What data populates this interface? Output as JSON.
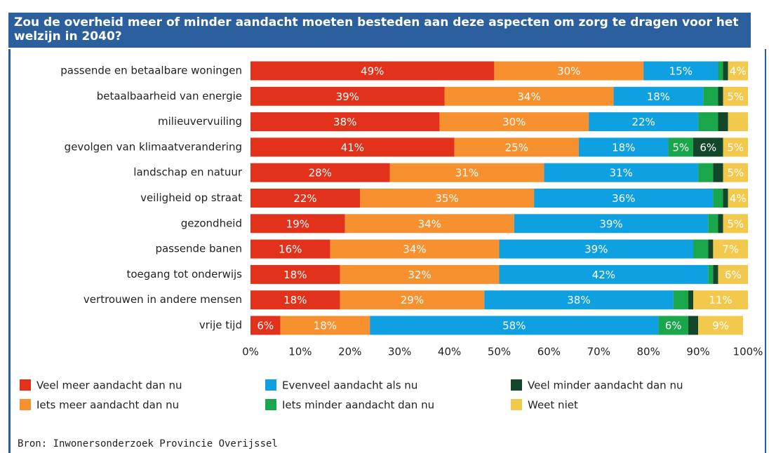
{
  "chart_data": {
    "type": "stacked-bar",
    "title": "Zou de overheid meer of minder aandacht moeten besteden aan deze aspecten om zorg te dragen voor het welzijn in 2040?",
    "source": "Bron: Inwonersonderzoek Provincie Overijssel",
    "categories": [
      "passende en betaalbare woningen",
      "betaalbaarheid van energie",
      "milieuvervuiling",
      "gevolgen van klimaatverandering",
      "landschap en natuur",
      "veiligheid op straat",
      "gezondheid",
      "passende banen",
      "toegang tot onderwijs",
      "vertrouwen in andere mensen",
      "vrije tijd"
    ],
    "series": [
      {
        "name": "Veel meer aandacht dan nu",
        "color": "#e3321b",
        "values": [
          49,
          39,
          38,
          41,
          28,
          22,
          19,
          16,
          18,
          18,
          6
        ],
        "value_labels": [
          "49%",
          "39%",
          "38%",
          "41%",
          "28%",
          "22%",
          "19%",
          "16%",
          "18%",
          "18%",
          "6%"
        ]
      },
      {
        "name": "Iets meer aandacht dan nu",
        "color": "#f7902f",
        "values": [
          30,
          34,
          30,
          25,
          31,
          35,
          34,
          34,
          32,
          29,
          18
        ],
        "value_labels": [
          "30%",
          "34%",
          "30%",
          "25%",
          "31%",
          "35%",
          "34%",
          "34%",
          "32%",
          "29%",
          "18%"
        ]
      },
      {
        "name": "Evenveel aandacht als nu",
        "color": "#0fa0e2",
        "values": [
          15,
          18,
          22,
          18,
          31,
          36,
          39,
          39,
          42,
          38,
          58
        ],
        "value_labels": [
          "15%",
          "18%",
          "22%",
          "18%",
          "31%",
          "36%",
          "39%",
          "39%",
          "42%",
          "38%",
          "58%"
        ]
      },
      {
        "name": "Iets minder aandacht dan nu",
        "color": "#1aa64a",
        "values": [
          1,
          3,
          4,
          5,
          3,
          2,
          2,
          3,
          1,
          3,
          6
        ],
        "value_labels": [
          null,
          null,
          null,
          "5%",
          null,
          null,
          null,
          null,
          null,
          null,
          "6%"
        ]
      },
      {
        "name": "Veel minder aandacht dan nu",
        "color": "#14472a",
        "values": [
          1,
          1,
          2,
          6,
          2,
          1,
          1,
          1,
          1,
          1,
          2
        ],
        "value_labels": [
          null,
          null,
          null,
          "6%",
          null,
          null,
          null,
          null,
          null,
          null,
          null
        ]
      },
      {
        "name": "Weet niet",
        "color": "#f2c94c",
        "values": [
          4,
          5,
          4,
          5,
          5,
          4,
          5,
          7,
          6,
          11,
          9
        ],
        "value_labels": [
          "4%",
          "5%",
          null,
          "5%",
          "5%",
          "4%",
          "5%",
          "7%",
          "6%",
          "11%",
          "9%"
        ]
      }
    ],
    "xlim": [
      0,
      100
    ],
    "xticks": [
      {
        "value": 0,
        "label": "0%"
      },
      {
        "value": 10,
        "label": "10%"
      },
      {
        "value": 20,
        "label": "20%"
      },
      {
        "value": 30,
        "label": "30%"
      },
      {
        "value": 40,
        "label": "40%"
      },
      {
        "value": 50,
        "label": "50%"
      },
      {
        "value": 60,
        "label": "60%"
      },
      {
        "value": 70,
        "label": "70%"
      },
      {
        "value": 80,
        "label": "80%"
      },
      {
        "value": 90,
        "label": "90%"
      },
      {
        "value": 100,
        "label": "100%"
      }
    ]
  }
}
